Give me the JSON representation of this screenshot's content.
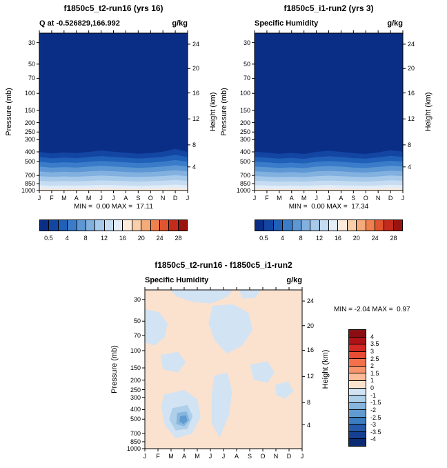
{
  "figure": {
    "background": "#ffffff",
    "axis": {
      "pressure_label": "Pressure (mb)",
      "height_label": "Height (km)",
      "pressure_ticks": [
        "30",
        "50",
        "70",
        "100",
        "150",
        "200",
        "250",
        "300",
        "400",
        "500",
        "700",
        "850",
        "1000"
      ],
      "height_ticks": [
        "24",
        "20",
        "16",
        "12",
        "8",
        "4"
      ],
      "months": [
        "J",
        "F",
        "M",
        "A",
        "M",
        "J",
        "J",
        "A",
        "S",
        "O",
        "N",
        "D",
        "J"
      ]
    },
    "q_palette": [
      "#0a2e86",
      "#1345a3",
      "#2160b8",
      "#3a7cc9",
      "#5d97d4",
      "#82b1e0",
      "#a7c9ea",
      "#c6dcf2",
      "#e2edf8",
      "#fcebdc",
      "#f9cfab",
      "#f5ab79",
      "#ef814f",
      "#e05430",
      "#c32b1c",
      "#99130f"
    ],
    "q_colorbar_labels": [
      "0.5",
      "4",
      "8",
      "12",
      "16",
      "20",
      "24",
      "28"
    ],
    "diff_palette": [
      "#8c0d12",
      "#b11218",
      "#d42822",
      "#e84c33",
      "#f4704b",
      "#f9946d",
      "#fbbc97",
      "#fbe2cf",
      "#d2e3f3",
      "#aecfe9",
      "#86b6de",
      "#5f9ad0",
      "#3c7cc0",
      "#255aab",
      "#153f92",
      "#0a2a74"
    ],
    "diff_colorbar_labels": [
      "4",
      "3.5",
      "3",
      "2.5",
      "2",
      "1.5",
      "1",
      "0",
      "-1",
      "-1.5",
      "-2",
      "-2.5",
      "-3",
      "-3.5",
      "-4"
    ]
  },
  "chart_data": [
    {
      "type": "filled_contour",
      "panel": "top_left",
      "title": "f1850c5_t2-run16 (yrs 16)",
      "field_label": "Q at -0.526829,166.992",
      "units": "g/kg",
      "stats_text": "MIN =  0.00 MAX =  17.11",
      "min": 0.0,
      "max": 17.11,
      "x_axis": "calendar months J to J",
      "y_axis": "pressure (mb), log scale 30-1000, with height (km) on right axis",
      "contour_levels": [
        0.5,
        2,
        4,
        6,
        8,
        10,
        12,
        14,
        16,
        18,
        20,
        22,
        24,
        26,
        28
      ],
      "band_boundaries": [
        {
          "level": 0.5,
          "pressure_mb": [
            400,
            415,
            405,
            412,
            400,
            388,
            398,
            408,
            418,
            412,
            398,
            372,
            400
          ]
        },
        {
          "level": 2,
          "pressure_mb": [
            452,
            466,
            458,
            464,
            452,
            442,
            450,
            460,
            468,
            462,
            450,
            430,
            452
          ]
        },
        {
          "level": 4,
          "pressure_mb": [
            506,
            520,
            512,
            518,
            506,
            496,
            504,
            514,
            522,
            516,
            504,
            486,
            506
          ]
        },
        {
          "level": 6,
          "pressure_mb": [
            568,
            582,
            574,
            580,
            568,
            558,
            566,
            576,
            584,
            578,
            566,
            548,
            568
          ]
        },
        {
          "level": 8,
          "pressure_mb": [
            636,
            650,
            642,
            648,
            636,
            626,
            634,
            644,
            652,
            646,
            634,
            618,
            636
          ]
        },
        {
          "level": 10,
          "pressure_mb": [
            712,
            724,
            716,
            722,
            712,
            702,
            710,
            720,
            726,
            720,
            710,
            694,
            712
          ]
        },
        {
          "level": 12,
          "pressure_mb": [
            796,
            806,
            800,
            804,
            796,
            788,
            794,
            802,
            808,
            802,
            794,
            780,
            796
          ]
        },
        {
          "level": 14,
          "pressure_mb": [
            884,
            892,
            887,
            890,
            884,
            877,
            882,
            889,
            894,
            889,
            882,
            870,
            884
          ]
        },
        {
          "level": 16,
          "pressure_mb": [
            958,
            964,
            960,
            962,
            958,
            952,
            956,
            961,
            965,
            961,
            956,
            948,
            958
          ]
        }
      ]
    },
    {
      "type": "filled_contour",
      "panel": "top_right",
      "title": "f1850c5_i1-run2 (yrs 3)",
      "field_label": "Specific Humidity",
      "units": "g/kg",
      "stats_text": "MIN =  0.00 MAX =  17.34",
      "min": 0.0,
      "max": 17.34,
      "x_axis": "calendar months J to J",
      "y_axis": "pressure (mb), log scale 30-1000, with height (km) on right axis",
      "contour_levels": [
        0.5,
        2,
        4,
        6,
        8,
        10,
        12,
        14,
        16,
        18,
        20,
        22,
        24,
        26,
        28
      ],
      "band_boundaries": [
        {
          "level": 0.5,
          "pressure_mb": [
            398,
            408,
            418,
            410,
            420,
            400,
            390,
            400,
            412,
            420,
            405,
            385,
            398
          ]
        },
        {
          "level": 2,
          "pressure_mb": [
            450,
            460,
            470,
            462,
            472,
            452,
            444,
            452,
            464,
            470,
            456,
            440,
            450
          ]
        },
        {
          "level": 4,
          "pressure_mb": [
            504,
            514,
            524,
            516,
            526,
            506,
            498,
            506,
            518,
            524,
            510,
            494,
            504
          ]
        },
        {
          "level": 6,
          "pressure_mb": [
            566,
            576,
            586,
            578,
            588,
            568,
            560,
            568,
            580,
            586,
            572,
            556,
            566
          ]
        },
        {
          "level": 8,
          "pressure_mb": [
            634,
            644,
            654,
            646,
            656,
            636,
            628,
            636,
            648,
            654,
            640,
            624,
            634
          ]
        },
        {
          "level": 10,
          "pressure_mb": [
            710,
            720,
            728,
            722,
            730,
            712,
            704,
            712,
            722,
            728,
            716,
            700,
            710
          ]
        },
        {
          "level": 12,
          "pressure_mb": [
            794,
            802,
            810,
            804,
            812,
            796,
            790,
            796,
            804,
            810,
            800,
            786,
            794
          ]
        },
        {
          "level": 14,
          "pressure_mb": [
            882,
            889,
            896,
            891,
            897,
            884,
            878,
            884,
            891,
            896,
            887,
            875,
            882
          ]
        },
        {
          "level": 16,
          "pressure_mb": [
            956,
            962,
            967,
            963,
            968,
            958,
            953,
            958,
            963,
            967,
            960,
            950,
            956
          ]
        }
      ]
    },
    {
      "type": "filled_contour_anomaly",
      "panel": "bottom",
      "title": "f1850c5_t2-run16 - f1850c5_i1-run2",
      "field_label": "Specific Humidity",
      "units": "g/kg",
      "stats_text": "MIN = -2.04 MAX =  0.97",
      "min": -2.04,
      "max": 0.97,
      "x_axis": "calendar months J to J",
      "y_axis": "pressure (mb), log scale 30-1000, with height (km) on right axis",
      "contour_levels": [
        -4,
        -3.5,
        -3,
        -2.5,
        -2,
        -1.5,
        -1,
        0,
        1,
        1.5,
        2,
        2.5,
        3,
        3.5,
        4
      ],
      "background_band": "0 to 1",
      "background_color_index": 7,
      "patches": [
        {
          "band": "-1 to 0",
          "color_index": 8,
          "points": [
            [
              0.16,
              0.0
            ],
            [
              0.56,
              0.0
            ],
            [
              0.52,
              0.045
            ],
            [
              0.42,
              0.085
            ],
            [
              0.3,
              0.075
            ],
            [
              0.2,
              0.04
            ]
          ]
        },
        {
          "band": "-1 to 0",
          "color_index": 8,
          "points": [
            [
              0.6,
              0.0
            ],
            [
              0.74,
              0.0
            ],
            [
              0.7,
              0.05
            ],
            [
              0.62,
              0.055
            ]
          ]
        },
        {
          "band": "-1 to 0",
          "color_index": 8,
          "points": [
            [
              0.0,
              0.12
            ],
            [
              0.09,
              0.14
            ],
            [
              0.145,
              0.21
            ],
            [
              0.125,
              0.3
            ],
            [
              0.06,
              0.35
            ],
            [
              0.0,
              0.33
            ]
          ]
        },
        {
          "band": "-1 to 0",
          "color_index": 8,
          "points": [
            [
              0.43,
              0.1
            ],
            [
              0.56,
              0.09
            ],
            [
              0.66,
              0.145
            ],
            [
              0.685,
              0.25
            ],
            [
              0.62,
              0.35
            ],
            [
              0.52,
              0.4
            ],
            [
              0.445,
              0.32
            ],
            [
              0.405,
              0.21
            ]
          ]
        },
        {
          "band": "-1 to 0",
          "color_index": 8,
          "points": [
            [
              0.1,
              0.41
            ],
            [
              0.21,
              0.39
            ],
            [
              0.26,
              0.455
            ],
            [
              0.21,
              0.52
            ],
            [
              0.115,
              0.5
            ]
          ]
        },
        {
          "band": "-1 to 0",
          "color_index": 8,
          "points": [
            [
              0.44,
              0.54
            ],
            [
              0.525,
              0.52
            ],
            [
              0.555,
              0.64
            ],
            [
              0.535,
              0.79
            ],
            [
              0.475,
              0.93
            ],
            [
              0.425,
              0.84
            ],
            [
              0.425,
              0.66
            ]
          ]
        },
        {
          "band": "-1 to 0",
          "color_index": 8,
          "points": [
            [
              0.67,
              0.47
            ],
            [
              0.78,
              0.45
            ],
            [
              0.825,
              0.52
            ],
            [
              0.78,
              0.585
            ],
            [
              0.69,
              0.565
            ]
          ]
        },
        {
          "band": "-1 to 0",
          "color_index": 8,
          "points": [
            [
              0.83,
              0.6
            ],
            [
              0.91,
              0.575
            ],
            [
              0.945,
              0.64
            ],
            [
              0.89,
              0.685
            ],
            [
              0.835,
              0.66
            ]
          ]
        },
        {
          "band": "-1 to 0",
          "color_index": 8,
          "points": [
            [
              0.12,
              0.66
            ],
            [
              0.25,
              0.63
            ],
            [
              0.335,
              0.69
            ],
            [
              0.355,
              0.8
            ],
            [
              0.3,
              0.905
            ],
            [
              0.195,
              0.935
            ],
            [
              0.125,
              0.85
            ],
            [
              0.105,
              0.74
            ]
          ]
        },
        {
          "band": "-1.5 to -1",
          "color_index": 9,
          "points": [
            [
              0.175,
              0.745
            ],
            [
              0.27,
              0.725
            ],
            [
              0.305,
              0.795
            ],
            [
              0.27,
              0.875
            ],
            [
              0.195,
              0.885
            ],
            [
              0.155,
              0.815
            ]
          ]
        },
        {
          "band": "-2 to -1.5",
          "color_index": 10,
          "points": [
            [
              0.205,
              0.775
            ],
            [
              0.265,
              0.765
            ],
            [
              0.285,
              0.82
            ],
            [
              0.25,
              0.86
            ],
            [
              0.2,
              0.845
            ]
          ]
        },
        {
          "band": "-2.5 to -2",
          "color_index": 11,
          "points": [
            [
              0.225,
              0.795
            ],
            [
              0.262,
              0.79
            ],
            [
              0.27,
              0.825
            ],
            [
              0.245,
              0.845
            ],
            [
              0.22,
              0.83
            ]
          ]
        }
      ]
    }
  ]
}
